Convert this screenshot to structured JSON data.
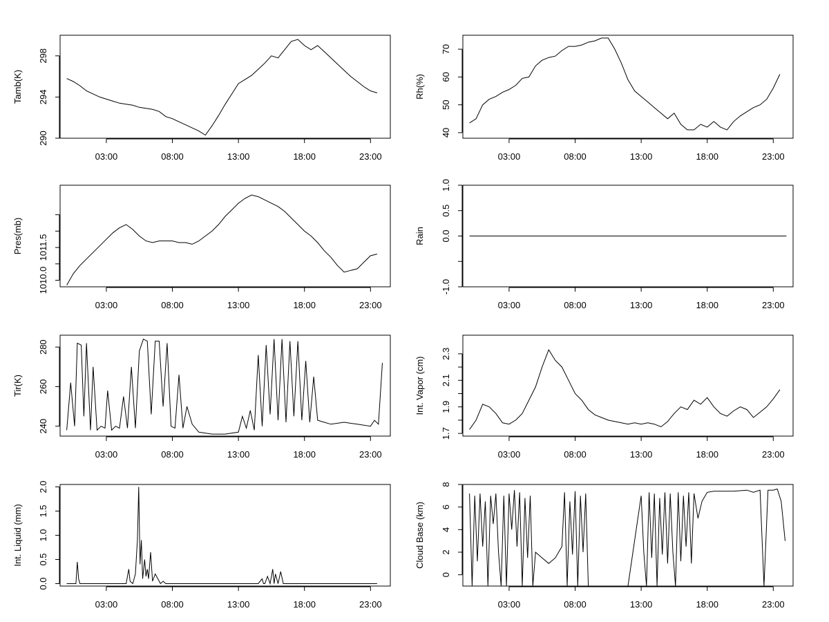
{
  "chart_data": [
    {
      "type": "line",
      "ylabel": "Tamb(K)",
      "ylim": [
        290,
        300
      ],
      "yticks": [
        290,
        294,
        298
      ],
      "ytick_labels": [
        "290",
        "294",
        "298"
      ],
      "xlim": [
        -0.5,
        24.5
      ],
      "xticks": [
        3,
        8,
        13,
        18,
        23
      ],
      "xtick_labels": [
        "03:00",
        "08:00",
        "13:00",
        "18:00",
        "23:00"
      ],
      "series": [
        {
          "x": [
            0,
            0.5,
            1,
            1.5,
            2,
            2.5,
            3,
            3.5,
            4,
            4.5,
            5,
            5.5,
            6,
            6.5,
            7,
            7.5,
            8,
            8.5,
            9,
            9.5,
            10,
            10.5,
            11,
            11.5,
            12,
            12.5,
            13,
            13.5,
            14,
            14.5,
            15,
            15.5,
            16,
            16.5,
            17,
            17.5,
            18,
            18.5,
            19,
            19.5,
            20,
            20.5,
            21,
            21.5,
            22,
            22.5,
            23,
            23.5
          ],
          "y": [
            295.8,
            295.5,
            295.1,
            294.6,
            294.3,
            294.0,
            293.8,
            293.6,
            293.4,
            293.3,
            293.2,
            293.0,
            292.9,
            292.8,
            292.6,
            292.1,
            291.9,
            291.6,
            291.3,
            291.0,
            290.7,
            290.3,
            291.2,
            292.2,
            293.3,
            294.3,
            295.3,
            295.7,
            296.1,
            296.7,
            297.3,
            298.0,
            297.8,
            298.6,
            299.4,
            299.6,
            299.0,
            298.6,
            299.0,
            298.4,
            297.8,
            297.2,
            296.6,
            296.0,
            295.5,
            295.0,
            294.6,
            294.4
          ]
        }
      ]
    },
    {
      "type": "line",
      "ylabel": "Rh(%)",
      "ylim": [
        38,
        75
      ],
      "yticks": [
        40,
        50,
        60,
        70
      ],
      "ytick_labels": [
        "40",
        "50",
        "60",
        "70"
      ],
      "xlim": [
        -0.5,
        24.5
      ],
      "xticks": [
        3,
        8,
        13,
        18,
        23
      ],
      "xtick_labels": [
        "03:00",
        "08:00",
        "13:00",
        "18:00",
        "23:00"
      ],
      "series": [
        {
          "x": [
            0,
            0.5,
            1,
            1.5,
            2,
            2.5,
            3,
            3.5,
            4,
            4.5,
            5,
            5.5,
            6,
            6.5,
            7,
            7.5,
            8,
            8.5,
            9,
            9.5,
            10,
            10.5,
            11,
            11.5,
            12,
            12.5,
            13,
            13.5,
            14,
            14.5,
            15,
            15.5,
            16,
            16.5,
            17,
            17.5,
            18,
            18.5,
            19,
            19.5,
            20,
            20.5,
            21,
            21.5,
            22,
            22.5,
            23,
            23.5
          ],
          "y": [
            43.5,
            45,
            50,
            52,
            53,
            54.5,
            55.5,
            57,
            59.5,
            60,
            64,
            66,
            67,
            67.5,
            69.5,
            71,
            71,
            71.5,
            72.5,
            73,
            74,
            74,
            70,
            65,
            59,
            55,
            53,
            51,
            49,
            47,
            45,
            47,
            43,
            41,
            41,
            43,
            42,
            44,
            42,
            41,
            44,
            46,
            47.5,
            49,
            50,
            52,
            56,
            61
          ]
        }
      ]
    },
    {
      "type": "line",
      "ylabel": "Pres(mb)",
      "ylim": [
        1009.8,
        1012.9
      ],
      "yticks": [
        1010.0,
        1010.5,
        1011.0,
        1011.5,
        1012.0
      ],
      "ytick_labels": [
        "1010.0",
        "",
        "1011.5",
        "",
        ""
      ],
      "xlim": [
        -0.5,
        24.5
      ],
      "xticks": [
        3,
        8,
        13,
        18,
        23
      ],
      "xtick_labels": [
        "03:00",
        "08:00",
        "13:00",
        "18:00",
        "23:00"
      ],
      "series": [
        {
          "x": [
            0,
            0.5,
            1,
            1.5,
            2,
            2.5,
            3,
            3.5,
            4,
            4.5,
            5,
            5.5,
            6,
            6.5,
            7,
            7.5,
            8,
            8.5,
            9,
            9.5,
            10,
            10.5,
            11,
            11.5,
            12,
            12.5,
            13,
            13.5,
            14,
            14.5,
            15,
            15.5,
            16,
            16.5,
            17,
            17.5,
            18,
            18.5,
            19,
            19.5,
            20,
            20.5,
            21,
            21.5,
            22,
            22.5,
            23,
            23.5
          ],
          "y": [
            1009.85,
            1010.2,
            1010.45,
            1010.65,
            1010.85,
            1011.05,
            1011.25,
            1011.45,
            1011.6,
            1011.7,
            1011.55,
            1011.35,
            1011.2,
            1011.15,
            1011.2,
            1011.2,
            1011.2,
            1011.15,
            1011.15,
            1011.1,
            1011.2,
            1011.35,
            1011.5,
            1011.7,
            1011.95,
            1012.15,
            1012.35,
            1012.5,
            1012.6,
            1012.55,
            1012.45,
            1012.35,
            1012.25,
            1012.1,
            1011.9,
            1011.7,
            1011.5,
            1011.35,
            1011.15,
            1010.9,
            1010.7,
            1010.45,
            1010.25,
            1010.3,
            1010.35,
            1010.55,
            1010.75,
            1010.8
          ]
        }
      ]
    },
    {
      "type": "line",
      "ylabel": "Rain",
      "ylim": [
        -1.0,
        1.0
      ],
      "yticks": [
        -1.0,
        -0.5,
        0.0,
        0.5,
        1.0
      ],
      "ytick_labels": [
        "-1.0",
        "",
        "0.0",
        "0.5",
        "1.0"
      ],
      "xlim": [
        -0.5,
        24.5
      ],
      "xticks": [
        3,
        8,
        13,
        18,
        23
      ],
      "xtick_labels": [
        "03:00",
        "08:00",
        "13:00",
        "18:00",
        "23:00"
      ],
      "series": [
        {
          "x": [
            0,
            24
          ],
          "y": [
            0,
            0
          ]
        }
      ]
    },
    {
      "type": "line",
      "ylabel": "Tir(K)",
      "ylim": [
        235,
        286
      ],
      "yticks": [
        240,
        260,
        280
      ],
      "ytick_labels": [
        "240",
        "260",
        "280"
      ],
      "xlim": [
        -0.5,
        24.5
      ],
      "xticks": [
        3,
        8,
        13,
        18,
        23
      ],
      "xtick_labels": [
        "03:00",
        "08:00",
        "13:00",
        "18:00",
        "23:00"
      ],
      "series": [
        {
          "x": [
            0,
            0.3,
            0.6,
            0.8,
            1.1,
            1.3,
            1.5,
            1.8,
            2.0,
            2.3,
            2.6,
            2.9,
            3.1,
            3.4,
            3.7,
            4.0,
            4.3,
            4.6,
            4.9,
            5.2,
            5.5,
            5.8,
            6.1,
            6.4,
            6.7,
            7.0,
            7.3,
            7.6,
            7.9,
            8.2,
            8.5,
            8.8,
            9.1,
            9.5,
            10.0,
            11.0,
            12.0,
            13.0,
            13.3,
            13.6,
            13.9,
            14.2,
            14.5,
            14.8,
            15.1,
            15.4,
            15.7,
            16.0,
            16.3,
            16.6,
            16.9,
            17.2,
            17.5,
            17.8,
            18.1,
            18.4,
            18.7,
            19.0,
            19.5,
            20.0,
            21.0,
            22.0,
            23.0,
            23.3,
            23.6,
            23.9
          ],
          "y": [
            238,
            262,
            240,
            282,
            281,
            245,
            282,
            238,
            270,
            238,
            240,
            239,
            258,
            238,
            240,
            239,
            255,
            239,
            270,
            239,
            278,
            284,
            283,
            246,
            283,
            283,
            250,
            282,
            240,
            239,
            266,
            239,
            250,
            241,
            237,
            236,
            236,
            237,
            245,
            239,
            248,
            238,
            276,
            240,
            281,
            246,
            284,
            243,
            284,
            242,
            283,
            245,
            283,
            243,
            273,
            242,
            265,
            243,
            242,
            241,
            242,
            241,
            240,
            243,
            241,
            272
          ]
        }
      ]
    },
    {
      "type": "line",
      "ylabel": "Int. Vapor (cm)",
      "ylim": [
        1.68,
        2.44
      ],
      "yticks": [
        1.7,
        1.8,
        1.9,
        2.0,
        2.1,
        2.2,
        2.3
      ],
      "ytick_labels": [
        "1.7",
        "",
        "1.9",
        "",
        "2.1",
        "",
        "2.3"
      ],
      "xlim": [
        -0.5,
        24.5
      ],
      "xticks": [
        3,
        8,
        13,
        18,
        23
      ],
      "xtick_labels": [
        "03:00",
        "08:00",
        "13:00",
        "18:00",
        "23:00"
      ],
      "series": [
        {
          "x": [
            0,
            0.5,
            1,
            1.5,
            2,
            2.5,
            3,
            3.5,
            4,
            4.5,
            5,
            5.5,
            6,
            6.5,
            7,
            7.5,
            8,
            8.5,
            9,
            9.5,
            10,
            10.5,
            11,
            11.5,
            12,
            12.5,
            13,
            13.5,
            14,
            14.5,
            15,
            15.5,
            16,
            16.5,
            17,
            17.5,
            18,
            18.5,
            19,
            19.5,
            20,
            20.5,
            21,
            21.5,
            22,
            22.5,
            23,
            23.5
          ],
          "y": [
            1.73,
            1.8,
            1.92,
            1.9,
            1.85,
            1.78,
            1.77,
            1.8,
            1.85,
            1.95,
            2.05,
            2.2,
            2.33,
            2.25,
            2.2,
            2.1,
            2.0,
            1.95,
            1.88,
            1.84,
            1.82,
            1.8,
            1.79,
            1.78,
            1.77,
            1.78,
            1.77,
            1.78,
            1.77,
            1.75,
            1.79,
            1.85,
            1.9,
            1.88,
            1.95,
            1.92,
            1.97,
            1.9,
            1.85,
            1.83,
            1.87,
            1.9,
            1.88,
            1.82,
            1.86,
            1.9,
            1.96,
            2.03
          ]
        }
      ]
    },
    {
      "type": "line",
      "ylabel": "Int. Liquid (mm)",
      "ylim": [
        -0.05,
        2.05
      ],
      "yticks": [
        0.0,
        0.5,
        1.0,
        1.5,
        2.0
      ],
      "ytick_labels": [
        "0.0",
        "0.5",
        "1.0",
        "1.5",
        "2.0"
      ],
      "xlim": [
        -0.5,
        24.5
      ],
      "xticks": [
        3,
        8,
        13,
        18,
        23
      ],
      "xtick_labels": [
        "03:00",
        "08:00",
        "13:00",
        "18:00",
        "23:00"
      ],
      "series": [
        {
          "x": [
            0,
            0.7,
            0.8,
            0.9,
            1.0,
            1.2,
            4.5,
            4.7,
            4.8,
            5.0,
            5.2,
            5.35,
            5.45,
            5.55,
            5.65,
            5.75,
            5.9,
            6.0,
            6.1,
            6.2,
            6.35,
            6.5,
            6.7,
            6.9,
            7.1,
            7.3,
            7.5,
            8.0,
            14.5,
            14.8,
            14.9,
            15.0,
            15.2,
            15.4,
            15.6,
            15.7,
            15.8,
            16.0,
            16.2,
            16.4,
            16.5,
            23.5
          ],
          "y": [
            0.0,
            0.0,
            0.45,
            0.1,
            0.0,
            0.0,
            0.0,
            0.3,
            0.05,
            0.0,
            0.2,
            0.9,
            2.0,
            0.4,
            0.9,
            0.1,
            0.5,
            0.15,
            0.3,
            0.1,
            0.65,
            0.05,
            0.2,
            0.1,
            0.0,
            0.05,
            0.0,
            0.0,
            0.0,
            0.1,
            0.0,
            0.0,
            0.15,
            0.0,
            0.3,
            0.0,
            0.2,
            0.0,
            0.25,
            0.0,
            0.0,
            0.0
          ]
        }
      ]
    },
    {
      "type": "line",
      "ylabel": "Cloud Base (km)",
      "ylim": [
        -1,
        8
      ],
      "yticks": [
        0,
        2,
        4,
        6,
        8
      ],
      "ytick_labels": [
        "0",
        "2",
        "4",
        "6",
        "8"
      ],
      "xlim": [
        -0.5,
        24.5
      ],
      "xticks": [
        3,
        8,
        13,
        18,
        23
      ],
      "xtick_labels": [
        "03:00",
        "08:00",
        "13:00",
        "18:00",
        "23:00"
      ],
      "series": [
        {
          "x": [
            0,
            0.2,
            0.4,
            0.6,
            0.8,
            1.0,
            1.2,
            1.4,
            1.6,
            1.8,
            2.0,
            2.2,
            2.4,
            2.6,
            2.8,
            3.0,
            3.2,
            3.4,
            3.6,
            3.8,
            4.0,
            4.2,
            4.4,
            4.6,
            4.8,
            5.0,
            5.5,
            6.0,
            6.5,
            7.0,
            7.2,
            7.4,
            7.6,
            7.8,
            8.0,
            8.2,
            8.4,
            8.6,
            8.8,
            9.0,
            9.5,
            10.0,
            11.0,
            12.0,
            13.0,
            13.2,
            13.4,
            13.6,
            13.8,
            14.0,
            14.2,
            14.4,
            14.6,
            14.8,
            15.0,
            15.2,
            15.4,
            15.6,
            15.8,
            16.0,
            16.2,
            16.4,
            16.6,
            16.8,
            17.0,
            17.3,
            17.6,
            18.0,
            18.5,
            19.0,
            20.0,
            21.0,
            21.5,
            22.0,
            22.3,
            22.6,
            23.0,
            23.3,
            23.6,
            23.9
          ],
          "y": [
            7.2,
            -1,
            7.0,
            1.2,
            7.2,
            2.5,
            6.5,
            -1,
            7.0,
            4.5,
            7.2,
            2.0,
            -1,
            7.0,
            -1,
            7.2,
            4.0,
            7.5,
            2.5,
            7.3,
            -1,
            6.8,
            1.5,
            7.0,
            -1,
            2.0,
            1.5,
            1.0,
            1.5,
            2.5,
            7.3,
            -1,
            6.5,
            1.8,
            7.4,
            -1,
            7.0,
            2.0,
            7.2,
            -1,
            -1,
            -1,
            -1,
            -1,
            7.0,
            2.0,
            -1,
            7.3,
            1.5,
            7.2,
            -1,
            6.8,
            1.8,
            7.3,
            1.0,
            7.2,
            2.0,
            -1,
            7.3,
            1.2,
            7.0,
            2.5,
            7.3,
            1.0,
            7.2,
            5.0,
            6.5,
            7.3,
            7.4,
            7.4,
            7.4,
            7.5,
            7.3,
            7.5,
            -1,
            7.5,
            7.5,
            7.6,
            6.5,
            3.0
          ]
        }
      ]
    }
  ]
}
